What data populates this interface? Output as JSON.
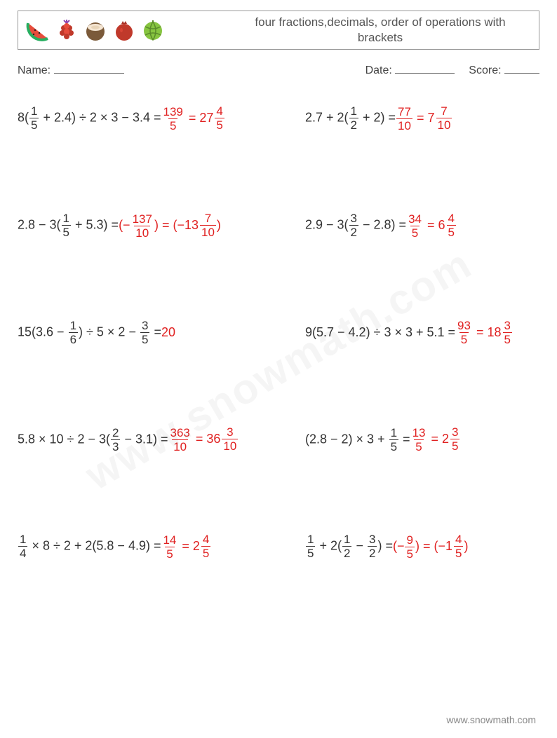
{
  "header": {
    "title": "four fractions,decimals, order of operations with brackets",
    "fruits": [
      "watermelon-slice",
      "raspberry",
      "coconut",
      "pomegranate",
      "melon"
    ]
  },
  "info": {
    "name_label": "Name:",
    "date_label": "Date:",
    "score_label": "Score:"
  },
  "colors": {
    "text": "#333333",
    "answer": "#e02020",
    "border": "#999999",
    "watermark": "rgba(0,0,0,0.04)",
    "footer": "#888888"
  },
  "typography": {
    "body_fontsize": 18,
    "title_fontsize": 17,
    "info_fontsize": 16
  },
  "problems": [
    {
      "left": {
        "expr": [
          {
            "t": "txt",
            "v": "8("
          },
          {
            "t": "frac",
            "n": "1",
            "d": "5"
          },
          {
            "t": "txt",
            "v": " + 2.4) ÷ 2 × 3 − 3.4 = "
          }
        ],
        "ans": [
          {
            "t": "frac",
            "n": "139",
            "d": "5"
          },
          {
            "t": "txt",
            "v": " = "
          },
          {
            "t": "mixed",
            "w": "27",
            "n": "4",
            "d": "5"
          }
        ]
      },
      "right": {
        "expr": [
          {
            "t": "txt",
            "v": "2.7 + 2("
          },
          {
            "t": "frac",
            "n": "1",
            "d": "2"
          },
          {
            "t": "txt",
            "v": " + 2) = "
          }
        ],
        "ans": [
          {
            "t": "frac",
            "n": "77",
            "d": "10"
          },
          {
            "t": "txt",
            "v": " = "
          },
          {
            "t": "mixed",
            "w": "7",
            "n": "7",
            "d": "10"
          }
        ]
      }
    },
    {
      "left": {
        "expr": [
          {
            "t": "txt",
            "v": "2.8 − 3("
          },
          {
            "t": "frac",
            "n": "1",
            "d": "5"
          },
          {
            "t": "txt",
            "v": " + 5.3) = "
          }
        ],
        "ans": [
          {
            "t": "txt",
            "v": "(−"
          },
          {
            "t": "frac",
            "n": "137",
            "d": "10"
          },
          {
            "t": "txt",
            "v": ") = (−"
          },
          {
            "t": "mixed",
            "w": "13",
            "n": "7",
            "d": "10"
          },
          {
            "t": "txt",
            "v": ")"
          }
        ]
      },
      "right": {
        "expr": [
          {
            "t": "txt",
            "v": "2.9 − 3("
          },
          {
            "t": "frac",
            "n": "3",
            "d": "2"
          },
          {
            "t": "txt",
            "v": " − 2.8) = "
          }
        ],
        "ans": [
          {
            "t": "frac",
            "n": "34",
            "d": "5"
          },
          {
            "t": "txt",
            "v": " = "
          },
          {
            "t": "mixed",
            "w": "6",
            "n": "4",
            "d": "5"
          }
        ]
      }
    },
    {
      "left": {
        "expr": [
          {
            "t": "txt",
            "v": "15(3.6 − "
          },
          {
            "t": "frac",
            "n": "1",
            "d": "6"
          },
          {
            "t": "txt",
            "v": ") ÷ 5 × 2 − "
          },
          {
            "t": "frac",
            "n": "3",
            "d": "5"
          },
          {
            "t": "txt",
            "v": " = "
          }
        ],
        "ans": [
          {
            "t": "txt",
            "v": "20"
          }
        ]
      },
      "right": {
        "expr": [
          {
            "t": "txt",
            "v": "9(5.7 − 4.2) ÷ 3 × 3 + 5.1 = "
          }
        ],
        "ans": [
          {
            "t": "frac",
            "n": "93",
            "d": "5"
          },
          {
            "t": "txt",
            "v": " = "
          },
          {
            "t": "mixed",
            "w": "18",
            "n": "3",
            "d": "5"
          }
        ]
      }
    },
    {
      "left": {
        "expr": [
          {
            "t": "txt",
            "v": "5.8 × 10 ÷ 2 − 3("
          },
          {
            "t": "frac",
            "n": "2",
            "d": "3"
          },
          {
            "t": "txt",
            "v": " − 3.1) = "
          }
        ],
        "ans": [
          {
            "t": "frac",
            "n": "363",
            "d": "10"
          },
          {
            "t": "txt",
            "v": " = "
          },
          {
            "t": "mixed",
            "w": "36",
            "n": "3",
            "d": "10"
          }
        ]
      },
      "right": {
        "expr": [
          {
            "t": "txt",
            "v": "(2.8 − 2) × 3 + "
          },
          {
            "t": "frac",
            "n": "1",
            "d": "5"
          },
          {
            "t": "txt",
            "v": " = "
          }
        ],
        "ans": [
          {
            "t": "frac",
            "n": "13",
            "d": "5"
          },
          {
            "t": "txt",
            "v": " = "
          },
          {
            "t": "mixed",
            "w": "2",
            "n": "3",
            "d": "5"
          }
        ]
      }
    },
    {
      "left": {
        "expr": [
          {
            "t": "frac",
            "n": "1",
            "d": "4"
          },
          {
            "t": "txt",
            "v": " × 8 ÷ 2 + 2(5.8 − 4.9) = "
          }
        ],
        "ans": [
          {
            "t": "frac",
            "n": "14",
            "d": "5"
          },
          {
            "t": "txt",
            "v": " = "
          },
          {
            "t": "mixed",
            "w": "2",
            "n": "4",
            "d": "5"
          }
        ]
      },
      "right": {
        "expr": [
          {
            "t": "frac",
            "n": "1",
            "d": "5"
          },
          {
            "t": "txt",
            "v": " + 2("
          },
          {
            "t": "frac",
            "n": "1",
            "d": "2"
          },
          {
            "t": "txt",
            "v": " − "
          },
          {
            "t": "frac",
            "n": "3",
            "d": "2"
          },
          {
            "t": "txt",
            "v": ") = "
          }
        ],
        "ans": [
          {
            "t": "txt",
            "v": "(−"
          },
          {
            "t": "frac",
            "n": "9",
            "d": "5"
          },
          {
            "t": "txt",
            "v": ") = (−"
          },
          {
            "t": "mixed",
            "w": "1",
            "n": "4",
            "d": "5"
          },
          {
            "t": "txt",
            "v": ")"
          }
        ]
      }
    }
  ],
  "watermark": "www.snowmath.com",
  "footer": "www.snowmath.com"
}
